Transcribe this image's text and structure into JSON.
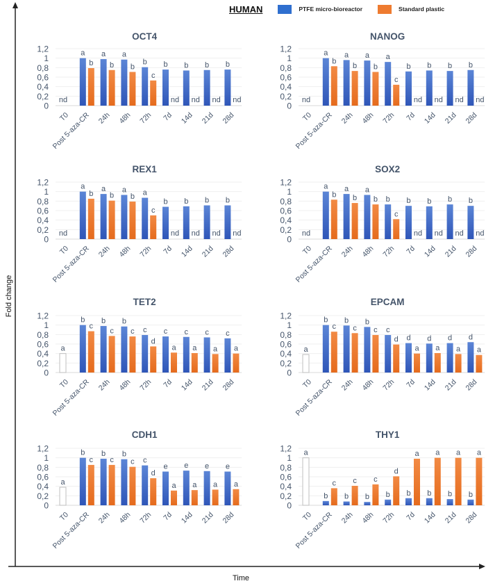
{
  "figure": {
    "species_label": "HUMAN",
    "outer_ylabel": "Fold change",
    "outer_xlabel": "Time",
    "legend": [
      {
        "name": "PTFE micro-bioreactor",
        "color": "#3a66c4"
      },
      {
        "name": "Standard plastic",
        "color": "#ee7b30"
      }
    ],
    "baseline_color": "#ffffff",
    "title_color": "#44546a"
  },
  "chart_data": [
    {
      "type": "bar",
      "title": "OCT4",
      "categories": [
        "T0",
        "Post 5-aza-CR",
        "24h",
        "48h",
        "72h",
        "7d",
        "14d",
        "21d",
        "28d"
      ],
      "yticks": [
        "0",
        "0,2",
        "0,4",
        "0,6",
        "0,8",
        "1",
        "1,2"
      ],
      "ylim": [
        0,
        1.2
      ],
      "grid": true,
      "t0": {
        "value": null,
        "letter": "nd"
      },
      "series": [
        {
          "name": "PTFE micro-bioreactor",
          "values": [
            null,
            1.0,
            0.98,
            0.97,
            0.81,
            0.76,
            0.74,
            0.75,
            0.76
          ],
          "letters": [
            "",
            "a",
            "a",
            "a",
            "b",
            "b",
            "b",
            "b",
            "b"
          ]
        },
        {
          "name": "Standard plastic",
          "values": [
            null,
            0.79,
            0.75,
            0.71,
            0.53,
            null,
            null,
            null,
            null
          ],
          "letters": [
            "",
            "b",
            "b",
            "b",
            "c",
            "nd",
            "nd",
            "nd",
            "nd"
          ]
        }
      ]
    },
    {
      "type": "bar",
      "title": "NANOG",
      "categories": [
        "T0",
        "Post 5-aza-CR",
        "24h",
        "48h",
        "72h",
        "7d",
        "14d",
        "21d",
        "28d"
      ],
      "yticks": [
        "0",
        "0,2",
        "0,4",
        "0,6",
        "0,8",
        "1",
        "1,2"
      ],
      "ylim": [
        0,
        1.2
      ],
      "grid": true,
      "t0": {
        "value": null,
        "letter": "nd"
      },
      "series": [
        {
          "name": "PTFE micro-bioreactor",
          "values": [
            null,
            1.0,
            0.96,
            0.95,
            0.92,
            0.72,
            0.74,
            0.73,
            0.75
          ],
          "letters": [
            "",
            "a",
            "a",
            "a",
            "a",
            "b",
            "b",
            "b",
            "b"
          ]
        },
        {
          "name": "Standard plastic",
          "values": [
            null,
            0.83,
            0.73,
            0.71,
            0.44,
            null,
            null,
            null,
            null
          ],
          "letters": [
            "",
            "b",
            "b",
            "b",
            "c",
            "nd",
            "nd",
            "nd",
            "nd"
          ]
        }
      ]
    },
    {
      "type": "bar",
      "title": "REX1",
      "categories": [
        "T0",
        "Post 5-aza-CR",
        "24h",
        "48h",
        "72h",
        "7d",
        "14d",
        "21d",
        "28d"
      ],
      "yticks": [
        "0",
        "0,2",
        "0,4",
        "0,6",
        "0,8",
        "1",
        "1,2"
      ],
      "ylim": [
        0,
        1.2
      ],
      "grid": true,
      "t0": {
        "value": null,
        "letter": "nd"
      },
      "series": [
        {
          "name": "PTFE micro-bioreactor",
          "values": [
            null,
            1.0,
            0.95,
            0.93,
            0.87,
            0.68,
            0.69,
            0.71,
            0.71
          ],
          "letters": [
            "",
            "a",
            "a",
            "a",
            "a",
            "b",
            "b",
            "b",
            "b"
          ]
        },
        {
          "name": "Standard plastic",
          "values": [
            null,
            0.85,
            0.81,
            0.79,
            0.5,
            null,
            null,
            null,
            null
          ],
          "letters": [
            "",
            "b",
            "b",
            "b",
            "c",
            "nd",
            "nd",
            "nd",
            "nd"
          ]
        }
      ]
    },
    {
      "type": "bar",
      "title": "SOX2",
      "categories": [
        "T0",
        "Post 5-aza-CR",
        "24h",
        "48h",
        "72h",
        "7d",
        "14d",
        "21d",
        "28d"
      ],
      "yticks": [
        "0",
        "0,2",
        "0,4",
        "0,6",
        "0,8",
        "1",
        "1,2"
      ],
      "ylim": [
        0,
        1.2
      ],
      "grid": true,
      "t0": {
        "value": null,
        "letter": "nd"
      },
      "series": [
        {
          "name": "PTFE micro-bioreactor",
          "values": [
            null,
            1.0,
            0.95,
            0.93,
            0.73,
            0.7,
            0.69,
            0.73,
            0.7
          ],
          "letters": [
            "",
            "a",
            "a",
            "a",
            "b",
            "b",
            "b",
            "b",
            "b"
          ]
        },
        {
          "name": "Standard plastic",
          "values": [
            null,
            0.83,
            0.76,
            0.73,
            0.42,
            null,
            null,
            null,
            null
          ],
          "letters": [
            "",
            "b",
            "b",
            "b",
            "c",
            "nd",
            "nd",
            "nd",
            "nd"
          ]
        }
      ]
    },
    {
      "type": "bar",
      "title": "TET2",
      "categories": [
        "T0",
        "Post 5-aza-CR",
        "24h",
        "48h",
        "72h",
        "7d",
        "14d",
        "21d",
        "28d"
      ],
      "yticks": [
        "0",
        "0,2",
        "0,4",
        "0,6",
        "0,8",
        "1",
        "1,2"
      ],
      "ylim": [
        0,
        1.2
      ],
      "grid": true,
      "t0": {
        "value": 0.4,
        "letter": "a"
      },
      "series": [
        {
          "name": "PTFE micro-bioreactor",
          "values": [
            null,
            1.0,
            0.98,
            0.97,
            0.79,
            0.76,
            0.75,
            0.74,
            0.72
          ],
          "letters": [
            "",
            "b",
            "b",
            "b",
            "c",
            "c",
            "c",
            "c",
            "c"
          ]
        },
        {
          "name": "Standard plastic",
          "values": [
            null,
            0.87,
            0.77,
            0.76,
            0.55,
            0.42,
            0.41,
            0.39,
            0.4
          ],
          "letters": [
            "",
            "c",
            "c",
            "c",
            "d",
            "a",
            "a",
            "a",
            "a"
          ]
        }
      ]
    },
    {
      "type": "bar",
      "title": "EPCAM",
      "categories": [
        "T0",
        "Post 5-aza-CR",
        "24h",
        "48h",
        "72h",
        "7d",
        "14d",
        "21d",
        "28d"
      ],
      "yticks": [
        "0",
        "0,2",
        "0,4",
        "0,6",
        "0,8",
        "1",
        "1,2"
      ],
      "ylim": [
        0,
        1.2
      ],
      "grid": true,
      "t0": {
        "value": 0.38,
        "letter": "a"
      },
      "series": [
        {
          "name": "PTFE micro-bioreactor",
          "values": [
            null,
            1.0,
            0.99,
            0.96,
            0.79,
            0.62,
            0.61,
            0.62,
            0.64
          ],
          "letters": [
            "",
            "b",
            "b",
            "b",
            "c",
            "d",
            "d",
            "d",
            "d"
          ]
        },
        {
          "name": "Standard plastic",
          "values": [
            null,
            0.86,
            0.83,
            0.79,
            0.59,
            0.4,
            0.41,
            0.39,
            0.37
          ],
          "letters": [
            "",
            "c",
            "c",
            "c",
            "d",
            "a",
            "a",
            "a",
            "a"
          ]
        }
      ]
    },
    {
      "type": "bar",
      "title": "CDH1",
      "categories": [
        "T0",
        "Post 5-aza-CR",
        "24h",
        "48h",
        "72h",
        "7d",
        "14d",
        "21d",
        "28d"
      ],
      "yticks": [
        "0",
        "0,2",
        "0,4",
        "0,6",
        "0,8",
        "1",
        "1,2"
      ],
      "ylim": [
        0,
        1.2
      ],
      "grid": true,
      "t0": {
        "value": 0.38,
        "letter": "a"
      },
      "series": [
        {
          "name": "PTFE micro-bioreactor",
          "values": [
            null,
            1.0,
            0.98,
            0.97,
            0.84,
            0.71,
            0.73,
            0.72,
            0.71
          ],
          "letters": [
            "",
            "b",
            "b",
            "b",
            "c",
            "e",
            "e",
            "e",
            "e"
          ]
        },
        {
          "name": "Standard plastic",
          "values": [
            null,
            0.85,
            0.85,
            0.81,
            0.57,
            0.31,
            0.32,
            0.33,
            0.34
          ],
          "letters": [
            "",
            "c",
            "c",
            "c",
            "d",
            "a",
            "a",
            "a",
            "a"
          ]
        }
      ]
    },
    {
      "type": "bar",
      "title": "THY1",
      "categories": [
        "T0",
        "Post 5-aza-CR",
        "24h",
        "48h",
        "72h",
        "7d",
        "14d",
        "21d",
        "28d"
      ],
      "yticks": [
        "0",
        "0,2",
        "0,4",
        "0,6",
        "0,8",
        "1",
        "1,2"
      ],
      "ylim": [
        0,
        1.2
      ],
      "grid": true,
      "t0": {
        "value": 1.0,
        "letter": "a"
      },
      "series": [
        {
          "name": "PTFE micro-bioreactor",
          "values": [
            null,
            0.09,
            0.08,
            0.07,
            0.12,
            0.15,
            0.15,
            0.13,
            0.12
          ],
          "letters": [
            "",
            "b",
            "b",
            "b",
            "b",
            "b",
            "b",
            "b",
            "b"
          ]
        },
        {
          "name": "Standard plastic",
          "values": [
            null,
            0.36,
            0.41,
            0.44,
            0.61,
            0.98,
            1.0,
            1.0,
            1.0
          ],
          "letters": [
            "",
            "c",
            "c",
            "c",
            "d",
            "a",
            "a",
            "a",
            "a"
          ]
        }
      ]
    }
  ]
}
